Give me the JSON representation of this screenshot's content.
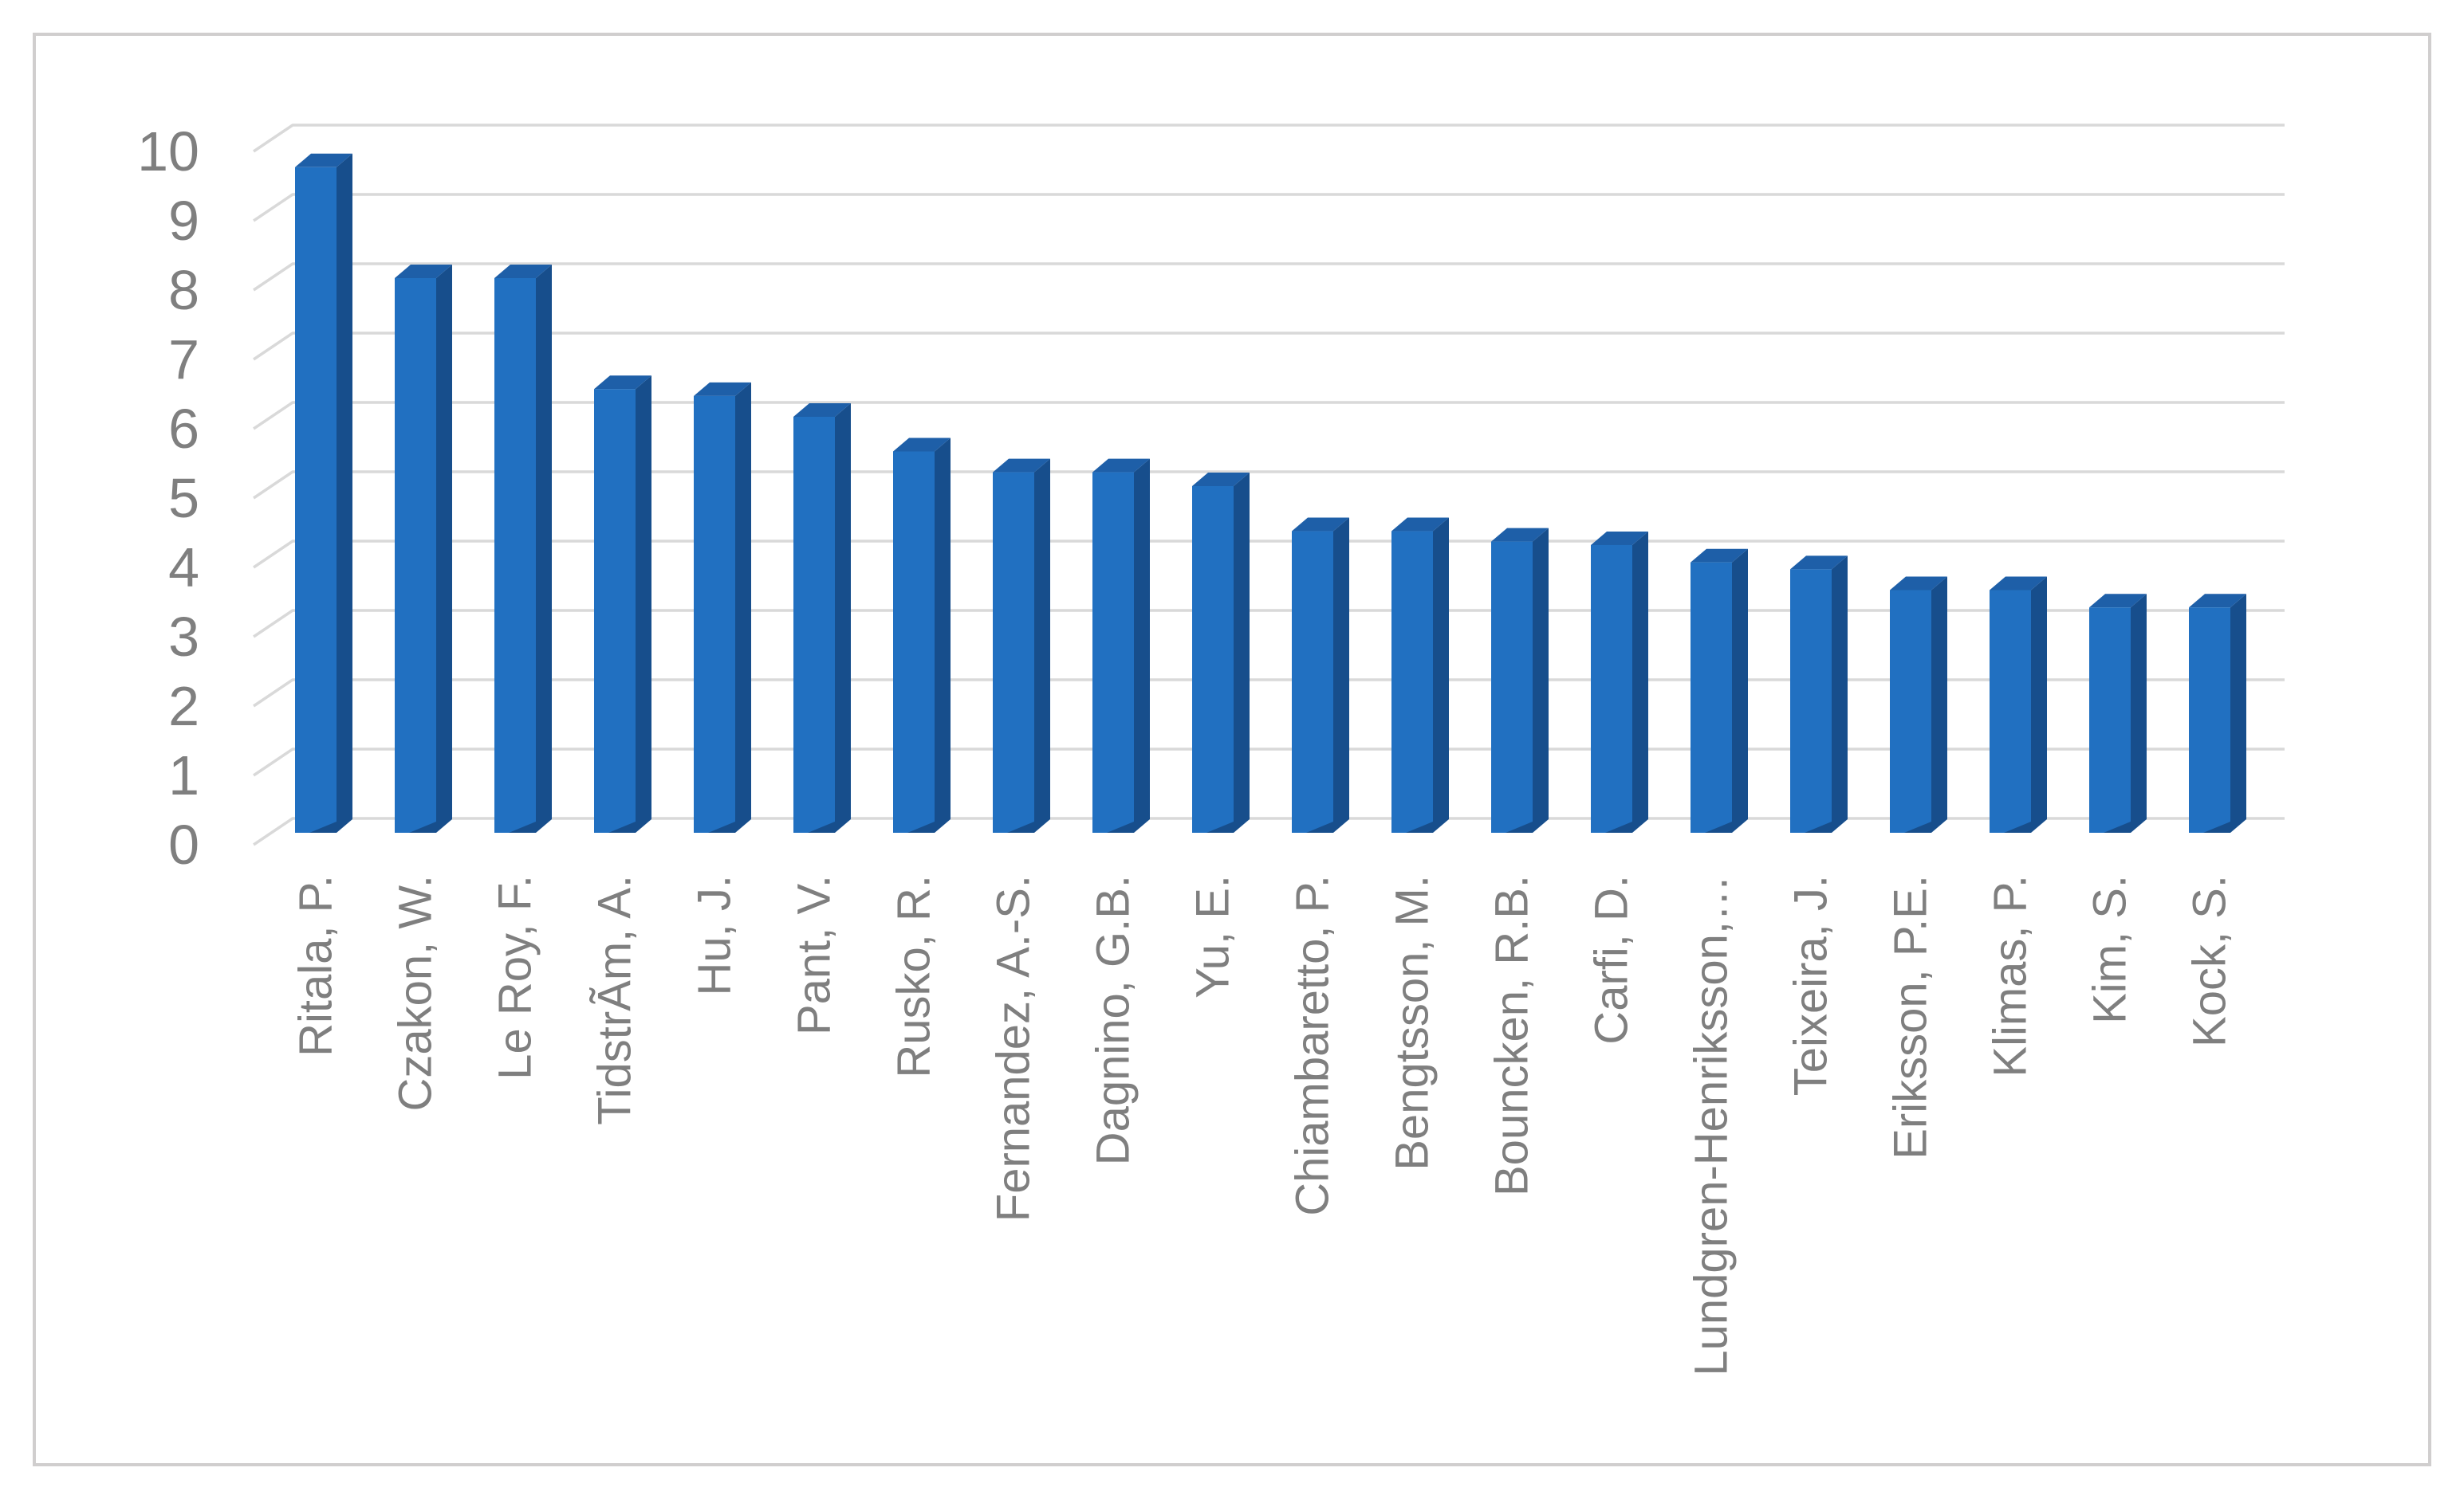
{
  "chart_data": {
    "type": "bar",
    "style": "3d-column",
    "title": "",
    "xlabel": "",
    "ylabel": "",
    "categories": [
      "Ritala, P.",
      "Czakon, W.",
      "Le Roy, F.",
      "TidstrÃm, A.",
      "Hu, J.",
      "Pant, V.",
      "Rusko, R.",
      "Fernandez, A.-S.",
      "Dagnino, G.B.",
      "Yu, E.",
      "Chiambaretto, P.",
      "Bengtsson, M.",
      "Bouncken, R.B.",
      "Carfi, D.",
      "Lundgren-Henriksson,…",
      "Teixeira, J.",
      "Eriksson, P.E.",
      "Klimas, P.",
      "Kim, S.",
      "Kock, S."
    ],
    "values": [
      9.6,
      8,
      8,
      6.4,
      6.3,
      6,
      5.5,
      5.2,
      5.2,
      5,
      4.35,
      4.35,
      4.2,
      4.15,
      3.9,
      3.8,
      3.5,
      3.5,
      3.25,
      3.25
    ],
    "ylim": [
      0,
      10
    ],
    "yticks": [
      0,
      1,
      2,
      3,
      4,
      5,
      6,
      7,
      8,
      9,
      10
    ],
    "grid": true,
    "legend": false,
    "colors": {
      "bar_front": "#2170C1",
      "bar_top": "#1E5FA8",
      "bar_side": "#174E8C",
      "gridline": "#D9D9D9",
      "axis_text": "#7F7F7F",
      "frame_border": "#D0CECE",
      "background": "#FFFFFF"
    }
  }
}
